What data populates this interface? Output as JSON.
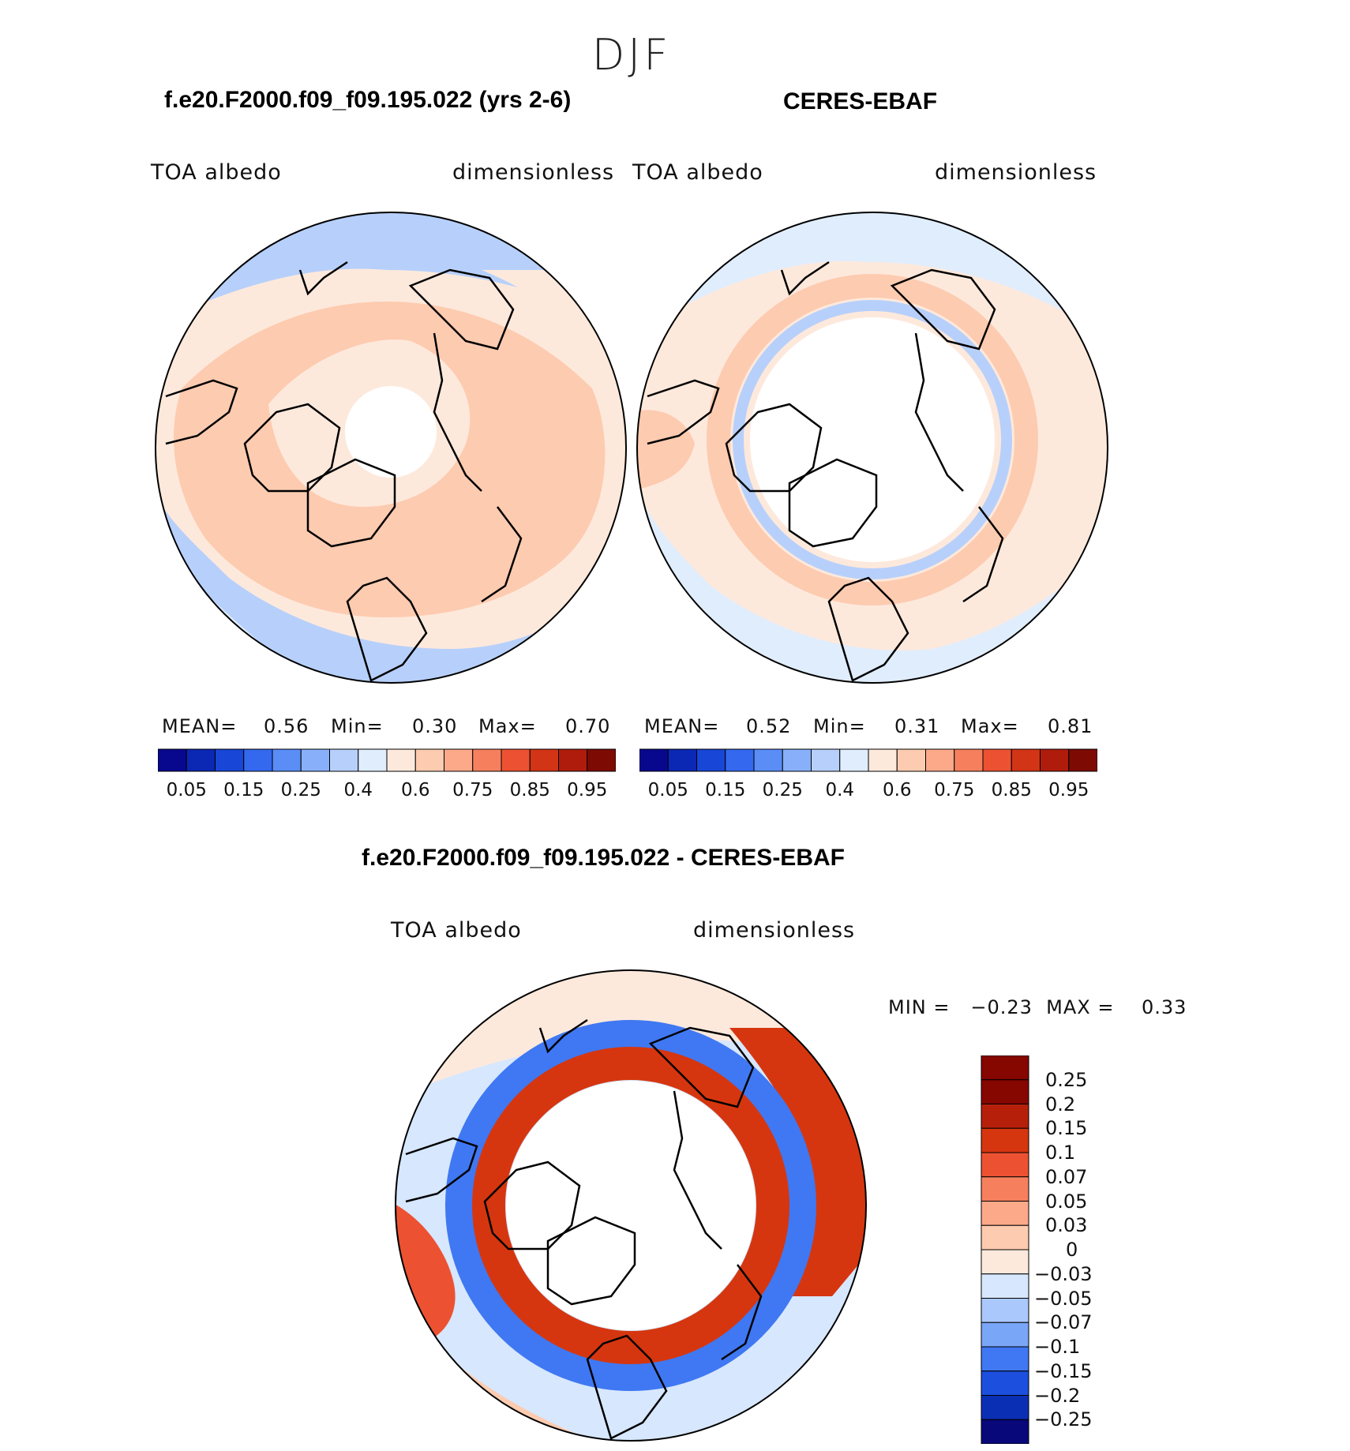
{
  "figure": {
    "season": "DJF",
    "panel_left_title": "f.e20.F2000.f09_f09.195.022 (yrs 2-6)",
    "panel_right_title": "CERES-EBAF",
    "diff_title": "f.e20.F2000.f09_f09.195.022 - CERES-EBAF",
    "variable": "TOA albedo",
    "units": "dimensionless"
  },
  "left_stats": {
    "mean_label": "MEAN=",
    "mean": "0.56",
    "min_label": "Min=",
    "min": "0.30",
    "max_label": "Max=",
    "max": "0.70"
  },
  "right_stats": {
    "mean_label": "MEAN=",
    "mean": "0.52",
    "min_label": "Min=",
    "min": "0.31",
    "max_label": "Max=",
    "max": "0.81"
  },
  "diff_stats": {
    "text": "MIN =   −0.23  MAX =    0.33"
  },
  "colors": {
    "abs_bins": [
      "#08088e",
      "#0a28b4",
      "#1846d6",
      "#3468ee",
      "#5a8df6",
      "#88b0fa",
      "#b7d0fb",
      "#e0edfd",
      "#fde9dc",
      "#fdcbb0",
      "#fca98a",
      "#f6805e",
      "#ec5232",
      "#d23416",
      "#b01c0c",
      "#7e0a04"
    ],
    "diff_bins": [
      "#08087a",
      "#0b2fb4",
      "#1c4fde",
      "#3f78f2",
      "#7aa6f8",
      "#aac8fb",
      "#d7e7fd",
      "#fde9dc",
      "#fdcbb0",
      "#fca98a",
      "#f6805e",
      "#ec5232",
      "#d6360f",
      "#b6200a",
      "#860600"
    ],
    "land_outline": "#000000"
  },
  "abs_colorbar_labels": [
    "0.05",
    "0.15",
    "0.25",
    "0.4",
    "0.6",
    "0.75",
    "0.85",
    "0.95"
  ],
  "diff_colorbar_labels": [
    "0.25",
    "0.2",
    "0.15",
    "0.1",
    "0.07",
    "0.05",
    "0.03",
    "0",
    "−0.03",
    "−0.05",
    "−0.07",
    "−0.1",
    "−0.15",
    "−0.2",
    "−0.25"
  ]
}
